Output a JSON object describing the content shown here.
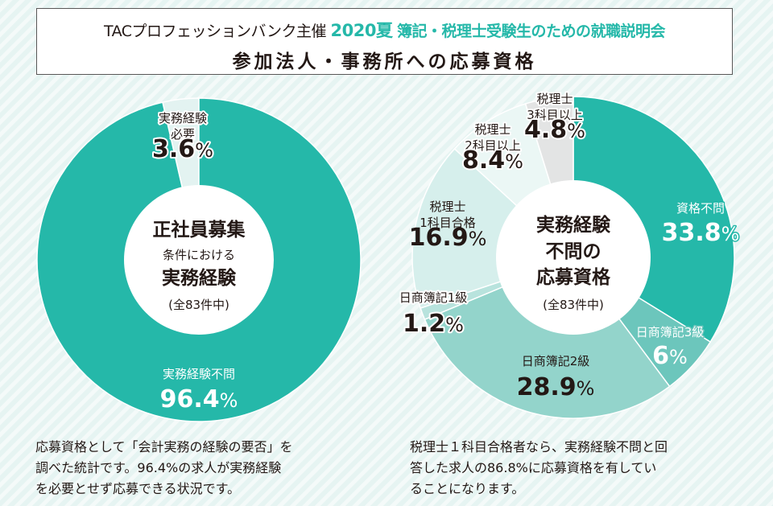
{
  "header": {
    "organizer": "TACプロフェッションバンク主催",
    "year_season": "2020夏",
    "event_name": "簿記・税理士受験生のための就職説明会",
    "subtitle": "参加法人・事務所への応募資格"
  },
  "colors": {
    "accent": "#25b8a9",
    "text": "#231815",
    "background": "#e6f4f2"
  },
  "chart_data": [
    {
      "type": "pie",
      "variant": "donut",
      "title": "正社員募集条件における実務経験",
      "center_label": [
        "正社員募集",
        "条件における",
        "実務経験",
        "(全83件中)"
      ],
      "total_count": 83,
      "categories": [
        "実務経験不問",
        "実務経験必要"
      ],
      "values": [
        96.4,
        3.6
      ],
      "unit": "%",
      "colors": [
        "#25b8a9",
        "#e3f3f1"
      ],
      "labels": [
        {
          "lines": [
            "実務経験不問"
          ],
          "value": "96.4"
        },
        {
          "lines": [
            "実務経験",
            "必要"
          ],
          "value": "3.6"
        }
      ]
    },
    {
      "type": "pie",
      "variant": "donut",
      "title": "実務経験不問の応募資格",
      "center_label": [
        "実務経験",
        "不問の",
        "応募資格",
        "(全83件中)"
      ],
      "total_count": 83,
      "categories": [
        "資格不問",
        "日商簿記3級",
        "日商簿記2級",
        "日商簿記1級",
        "税理士1科目合格",
        "税理士2科目以上",
        "税理士3科目以上"
      ],
      "values": [
        33.8,
        6,
        28.9,
        1.2,
        16.9,
        8.4,
        4.8
      ],
      "unit": "%",
      "colors": [
        "#25b8a9",
        "#6cc6bc",
        "#93d4cb",
        "#b8e3dd",
        "#d6efec",
        "#ebf7f5",
        "#e3e4e4"
      ],
      "labels": [
        {
          "lines": [
            "資格不問"
          ],
          "value": "33.8"
        },
        {
          "lines": [
            "日商簿記3級"
          ],
          "value": "6"
        },
        {
          "lines": [
            "日商簿記2級"
          ],
          "value": "28.9"
        },
        {
          "lines": [
            "日商簿記1級"
          ],
          "value": "1.2"
        },
        {
          "lines": [
            "税理士",
            "1科目合格"
          ],
          "value": "16.9"
        },
        {
          "lines": [
            "税理士",
            "2科目以上"
          ],
          "value": "8.4"
        },
        {
          "lines": [
            "税理士",
            "3科目以上"
          ],
          "value": "4.8"
        }
      ]
    }
  ],
  "notes": {
    "left": [
      "応募資格として「会計実務の経験の要否」を",
      "調べた統計です。96.4%の求人が実務経験",
      "を必要とせず応募できる状況です。"
    ],
    "right": [
      "税理士１科目合格者なら、実務経験不問と回",
      "答した求人の86.8%に応募資格を有してい",
      "ることになります。"
    ]
  }
}
